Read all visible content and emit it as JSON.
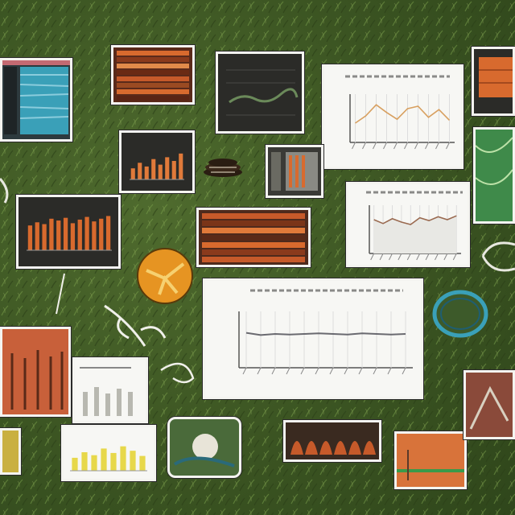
{
  "scene": {
    "description_free": true,
    "colors": {
      "grass": "#3f5a27",
      "paper": "#f7f7f4",
      "dark_panel": "#2b2b28",
      "orange": "#d86a2e",
      "teal": "#3aa0b8",
      "yellow": "#e7d84a",
      "red_brown": "#b64a2a"
    }
  },
  "chart_data": [
    {
      "type": "line",
      "title": "",
      "x": [
        1,
        2,
        3,
        4,
        5,
        6,
        7,
        8,
        9,
        10,
        11,
        12
      ],
      "values": [
        62,
        58,
        60,
        59,
        60,
        61,
        60,
        59,
        61,
        60,
        59,
        60
      ],
      "ylim": [
        0,
        100
      ]
    },
    {
      "type": "line",
      "title": "",
      "x": [
        1,
        2,
        3,
        4,
        5,
        6,
        7,
        8,
        9,
        10
      ],
      "values": [
        40,
        55,
        78,
        62,
        48,
        70,
        75,
        52,
        68,
        46
      ],
      "ylim": [
        0,
        100
      ]
    },
    {
      "type": "area",
      "title": "",
      "x": [
        1,
        2,
        3,
        4,
        5,
        6,
        7,
        8,
        9,
        10
      ],
      "values": [
        70,
        62,
        72,
        65,
        60,
        74,
        68,
        76,
        70,
        78
      ],
      "ylim": [
        0,
        100
      ]
    },
    {
      "type": "bar",
      "title": "",
      "values": [
        55,
        62,
        58,
        70,
        66,
        72,
        60,
        68,
        74,
        64,
        70,
        76
      ],
      "ylim": [
        0,
        100
      ]
    },
    {
      "type": "bar",
      "title": "",
      "values": [
        30,
        45,
        35,
        55,
        40,
        60,
        50,
        70
      ],
      "ylim": [
        0,
        100
      ]
    }
  ]
}
